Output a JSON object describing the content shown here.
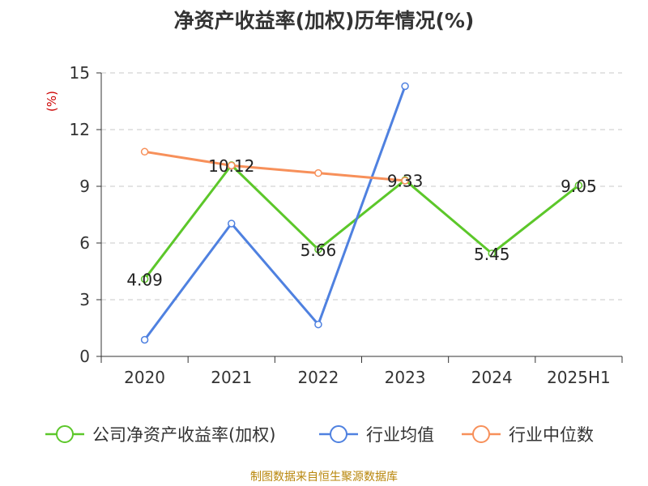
{
  "chart_data": {
    "type": "line",
    "title": "净资产收益率(加权)历年情况(%)",
    "ylabel": "(%)",
    "xlabel": "",
    "categories": [
      "2020",
      "2021",
      "2022",
      "2023",
      "2024",
      "2025H1"
    ],
    "ylim": [
      0,
      15
    ],
    "yticks": [
      0,
      3,
      6,
      9,
      12,
      15
    ],
    "grid": "horizontal-dashed",
    "legend_position": "bottom",
    "series": [
      {
        "name": "公司净资产收益率(加权)",
        "color": "#5cc72a",
        "values": [
          4.09,
          10.12,
          5.66,
          9.33,
          5.45,
          9.05
        ],
        "labels": [
          "4.09",
          "10.12",
          "5.66",
          "9.33",
          "5.45",
          "9.05"
        ]
      },
      {
        "name": "行业均值",
        "color": "#4f81e0",
        "values": [
          0.88,
          7.03,
          1.69,
          14.3,
          null,
          null
        ]
      },
      {
        "name": "行业中位数",
        "color": "#f7905a",
        "values": [
          10.83,
          10.1,
          9.7,
          9.3,
          null,
          null
        ]
      }
    ]
  },
  "source": "制图数据来自恒生聚源数据库"
}
